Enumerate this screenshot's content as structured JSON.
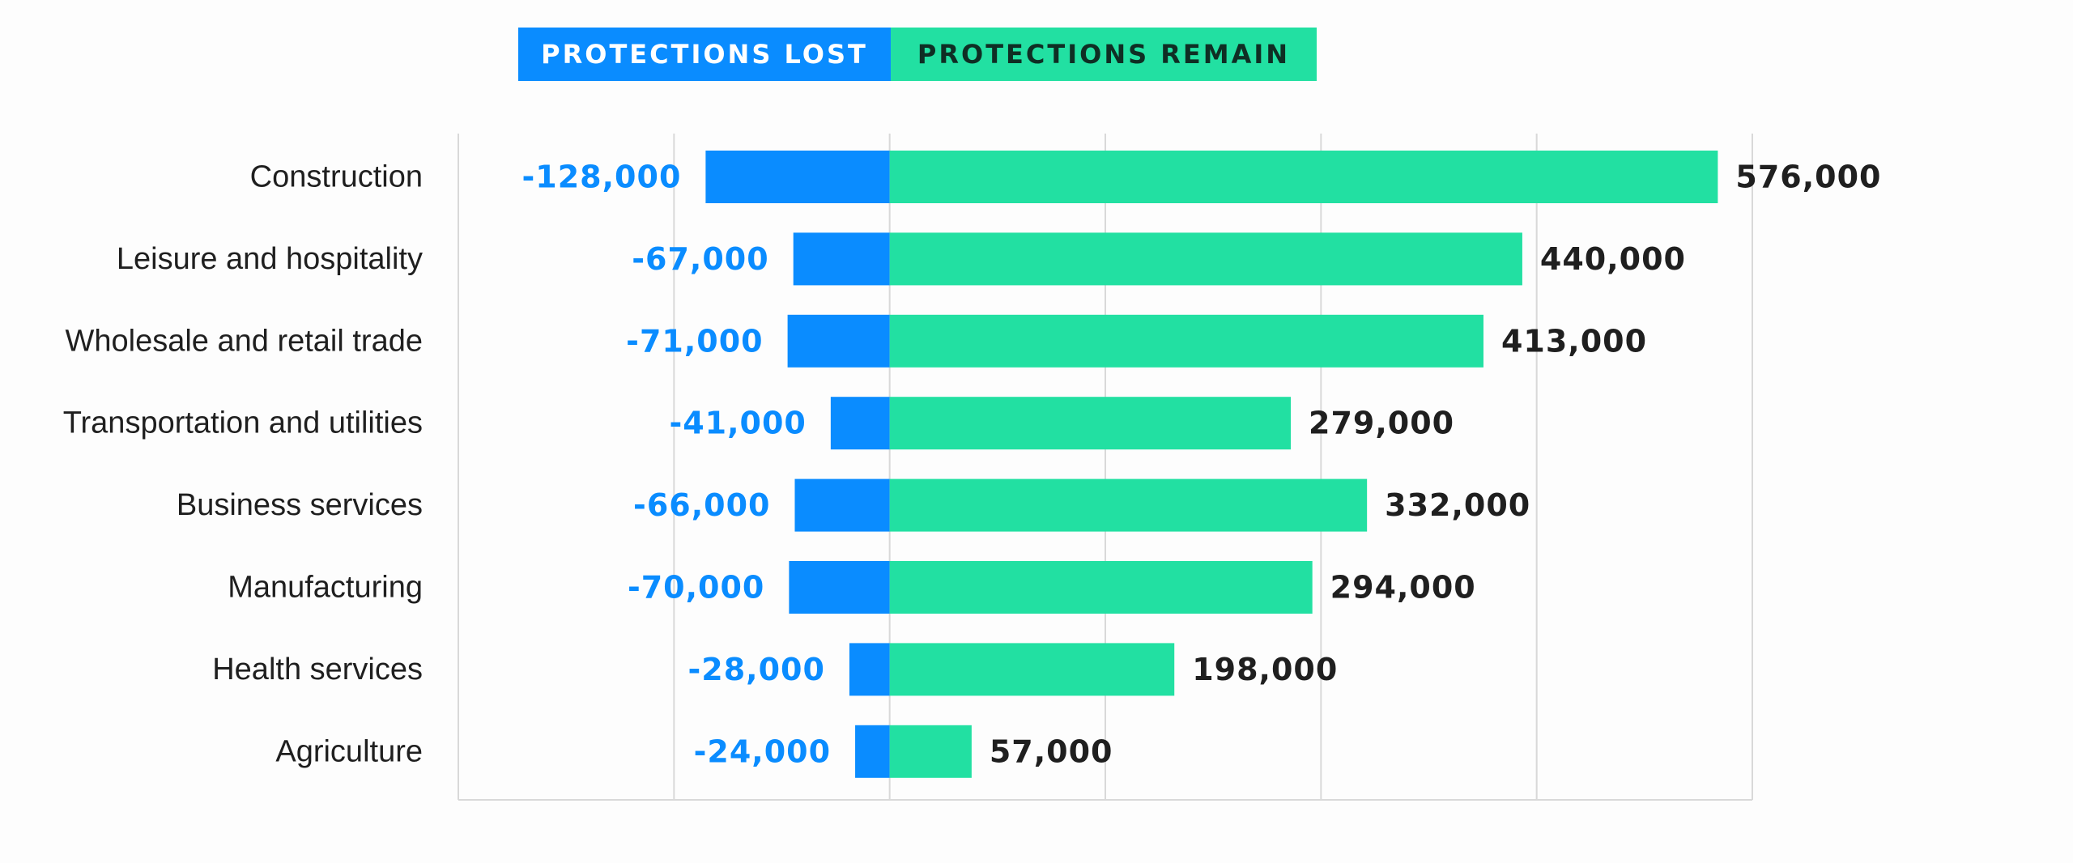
{
  "chart_data": {
    "type": "bar",
    "orientation": "horizontal",
    "stacking": "diverging",
    "categories": [
      "Construction",
      "Leisure and hospitality",
      "Wholesale and retail trade",
      "Transportation and utilities",
      "Business services",
      "Manufacturing",
      "Health services",
      "Agriculture"
    ],
    "series": [
      {
        "name": "PROTECTIONS LOST",
        "color": "#0a8cff",
        "values": [
          -128000,
          -67000,
          -71000,
          -41000,
          -66000,
          -70000,
          -28000,
          -24000
        ],
        "labels": [
          "-128,000",
          "-67,000",
          "-71,000",
          "-41,000",
          "-66,000",
          "-70,000",
          "-28,000",
          "-24,000"
        ]
      },
      {
        "name": "PROTECTIONS REMAIN",
        "color": "#22e0a2",
        "values": [
          576000,
          440000,
          413000,
          279000,
          332000,
          294000,
          198000,
          57000
        ],
        "labels": [
          "576,000",
          "440,000",
          "413,000",
          "279,000",
          "332,000",
          "294,000",
          "198,000",
          "57,000"
        ]
      }
    ],
    "xlim": [
      -300000,
      600000
    ],
    "x_grid_step": 150000,
    "grid": true,
    "legend_position": "top",
    "xlabel": "",
    "ylabel": "",
    "title": ""
  },
  "colors": {
    "lost": "#0a8cff",
    "remain": "#22e0a2",
    "lost_label": "#0a8cff",
    "remain_label": "#1f1f1f",
    "category_label": "#1f1f1f",
    "grid": "#d9d9d9",
    "legend_remain_text": "#0f2e24",
    "legend_lost_text": "#ffffff"
  }
}
